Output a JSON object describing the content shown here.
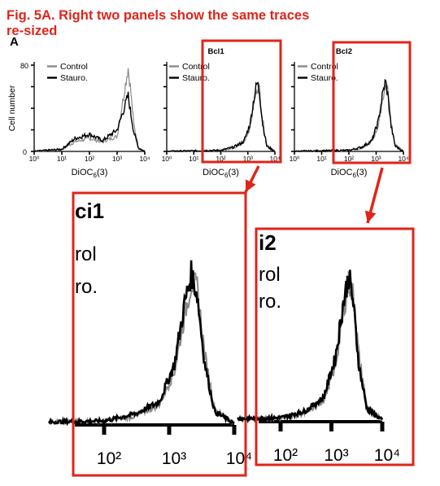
{
  "caption": {
    "line1": "Fig. 5A. Right two panels show the same traces",
    "line2": "re-sized"
  },
  "panel_letter": "A",
  "colors": {
    "highlight": "#e0241b",
    "control_trace": "#8a8a8a",
    "stauro_trace": "#000000"
  },
  "chart_data": [
    {
      "type": "line",
      "title": "",
      "xlabel": "DiOC6(3)",
      "ylabel": "Cell number",
      "xscale": "log",
      "xlim": [
        1,
        10000
      ],
      "ylim": [
        0,
        80
      ],
      "x_tick_labels": [
        "10⁰",
        "10¹",
        "10²",
        "10³",
        "10⁴"
      ],
      "y_tick_labels": [
        "0",
        "80"
      ],
      "legend": [
        "Control",
        "Stauro."
      ],
      "series": [
        {
          "name": "Control",
          "x": [
            1,
            10,
            30,
            100,
            300,
            1000,
            1800,
            2500,
            3000,
            4000,
            6000,
            10000
          ],
          "values": [
            0,
            2,
            9,
            12,
            9,
            14,
            55,
            78,
            60,
            25,
            4,
            0
          ]
        },
        {
          "name": "Stauro.",
          "x": [
            1,
            10,
            30,
            100,
            300,
            1000,
            1800,
            2500,
            3000,
            4000,
            6000,
            10000
          ],
          "values": [
            0,
            2,
            12,
            16,
            10,
            20,
            40,
            52,
            38,
            18,
            3,
            0
          ]
        }
      ]
    },
    {
      "type": "line",
      "title": "Bcl1",
      "xlabel": "DiOC6(3)",
      "xscale": "log",
      "xlim": [
        1,
        10000
      ],
      "x_tick_labels": [
        "10⁰",
        "10¹",
        "10²",
        "10³",
        "10⁴"
      ],
      "legend": [
        "Control",
        "Stauro."
      ],
      "series": [
        {
          "name": "Control",
          "x": [
            1,
            100,
            300,
            700,
            1200,
            1700,
            2200,
            2700,
            3500,
            5000,
            10000
          ],
          "values": [
            0,
            1,
            3,
            8,
            22,
            45,
            60,
            58,
            30,
            6,
            0
          ]
        },
        {
          "name": "Stauro.",
          "x": [
            1,
            100,
            300,
            700,
            1200,
            1700,
            2200,
            2700,
            3500,
            5000,
            10000
          ],
          "values": [
            0,
            1,
            4,
            9,
            25,
            50,
            64,
            55,
            26,
            5,
            0
          ]
        }
      ]
    },
    {
      "type": "line",
      "title": "Bcl2",
      "xlabel": "DiOC6(3)",
      "xscale": "log",
      "xlim": [
        1,
        10000
      ],
      "x_tick_labels": [
        "10⁰",
        "10¹",
        "10²",
        "10³",
        "10⁴"
      ],
      "legend": [
        "Control",
        "Stauro."
      ],
      "series": [
        {
          "name": "Control",
          "x": [
            1,
            100,
            300,
            700,
            1200,
            1700,
            2200,
            2700,
            3500,
            5000,
            10000
          ],
          "values": [
            0,
            1,
            3,
            9,
            24,
            48,
            62,
            56,
            28,
            6,
            0
          ]
        },
        {
          "name": "Stauro.",
          "x": [
            1,
            100,
            300,
            700,
            1200,
            1700,
            2200,
            2700,
            3500,
            5000,
            10000
          ],
          "values": [
            0,
            1,
            4,
            10,
            28,
            52,
            65,
            52,
            24,
            5,
            0
          ]
        }
      ]
    }
  ],
  "zoom_bcl1": {
    "title_fragment": "ci1",
    "legend": [
      "rol",
      "ro."
    ],
    "x_tick_labels": [
      "10²",
      "10³",
      "10⁴"
    ]
  },
  "zoom_bcl2": {
    "title_fragment": "i2",
    "legend": [
      "rol",
      "ro."
    ],
    "x_tick_labels": [
      "10²",
      "10³",
      "10⁴"
    ]
  }
}
